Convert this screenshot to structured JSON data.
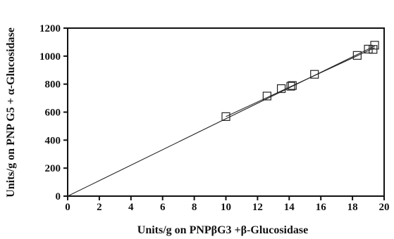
{
  "chart_data": {
    "type": "scatter",
    "xlabel": "Units/g on PNPβG3 +β-Glucosidase",
    "ylabel": "Units/g on PNP G5 + α-Glucosidase",
    "xlim": [
      0,
      20
    ],
    "ylim": [
      0,
      1200
    ],
    "x_ticks": [
      "0",
      "2",
      "4",
      "6",
      "8",
      "10",
      "12",
      "14",
      "16",
      "18",
      "20"
    ],
    "y_ticks": [
      "0",
      "200",
      "400",
      "600",
      "800",
      "1000",
      "1200"
    ],
    "grid": false,
    "marker": "open-square",
    "points": [
      {
        "x": 10.0,
        "y": 568
      },
      {
        "x": 12.6,
        "y": 715
      },
      {
        "x": 13.5,
        "y": 768
      },
      {
        "x": 14.1,
        "y": 785
      },
      {
        "x": 14.2,
        "y": 790
      },
      {
        "x": 15.6,
        "y": 870
      },
      {
        "x": 18.3,
        "y": 1005
      },
      {
        "x": 19.0,
        "y": 1050
      },
      {
        "x": 19.3,
        "y": 1048
      },
      {
        "x": 19.4,
        "y": 1078
      }
    ],
    "lines": [
      {
        "x": [
          0,
          19.4
        ],
        "y": [
          0,
          1072
        ]
      },
      {
        "x": [
          10.0,
          19.4
        ],
        "y": [
          568,
          1060
        ]
      }
    ]
  }
}
